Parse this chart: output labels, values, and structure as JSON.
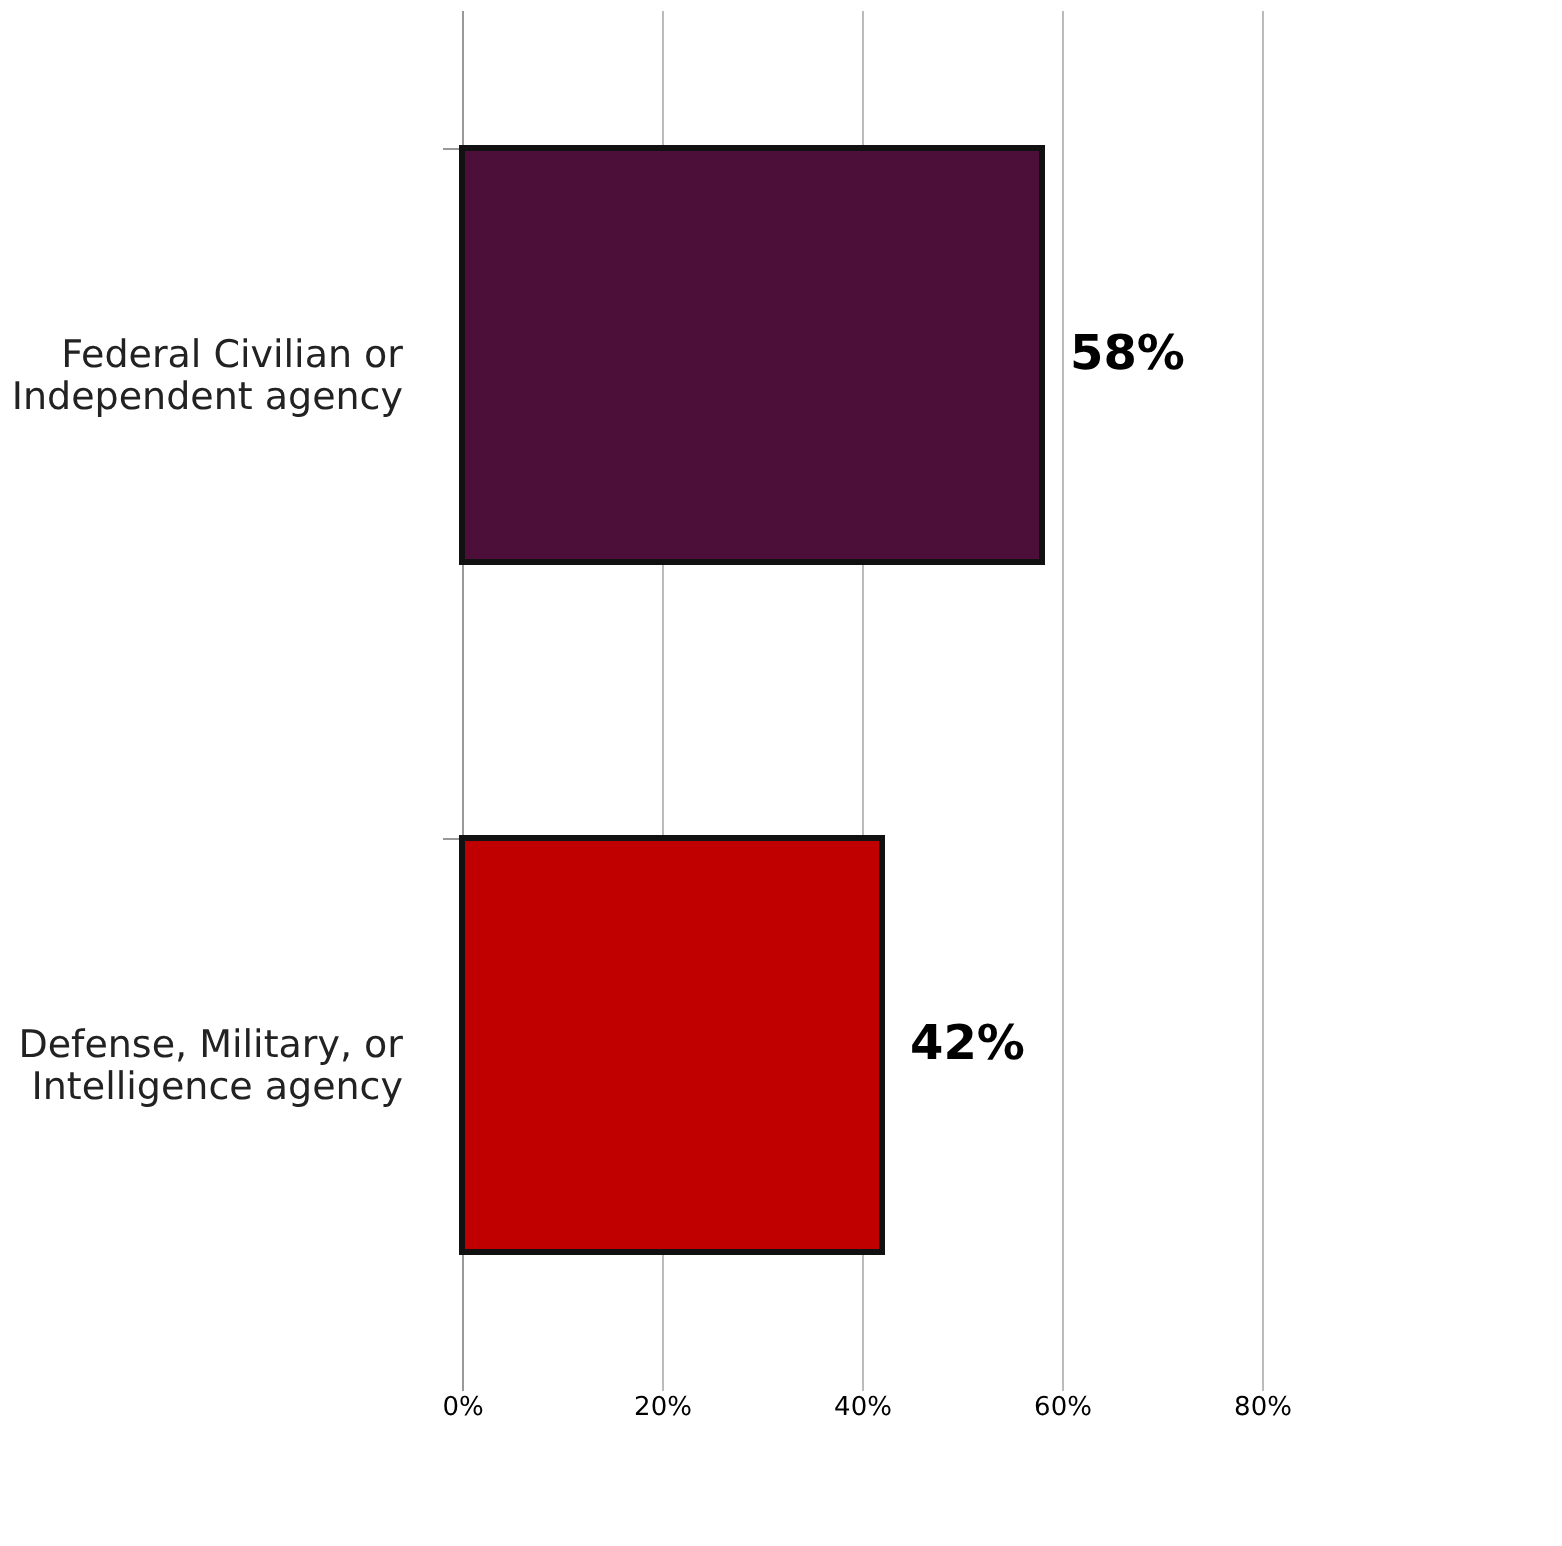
{
  "chart_data": {
    "type": "bar",
    "orientation": "horizontal",
    "categories": [
      "Federal Civilian or Independent agency",
      "Defense, Military, or Intelligence agency"
    ],
    "values": [
      58,
      42
    ],
    "colors": [
      "#4b0f3a",
      "#c00000"
    ],
    "value_labels": [
      "58%",
      "42%"
    ],
    "xlim": [
      0,
      80
    ],
    "xticks": [
      {
        "value": 0,
        "label": "0%"
      },
      {
        "value": 20,
        "label": "20%"
      },
      {
        "value": 40,
        "label": "40%"
      },
      {
        "value": 60,
        "label": "60%"
      },
      {
        "value": 80,
        "label": "80%"
      }
    ],
    "grid": "x"
  }
}
